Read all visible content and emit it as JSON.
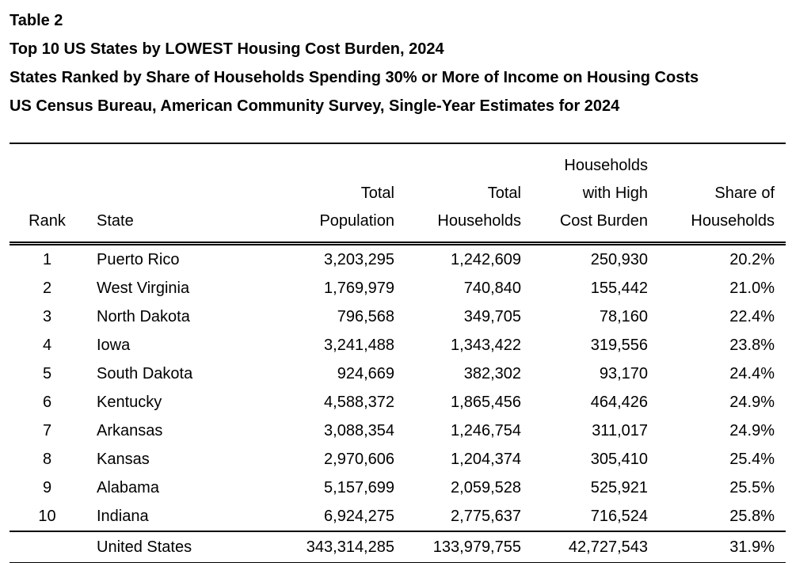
{
  "title_block": {
    "table_number": "Table 2",
    "title": "Top 10 US States by LOWEST Housing Cost Burden, 2024",
    "subtitle": "States Ranked by Share of Households Spending 30% or More of Income on Housing Costs",
    "source": "US Census Bureau, American Community Survey, Single-Year Estimates for 2024"
  },
  "table": {
    "headers": {
      "rank": "Rank",
      "state": "State",
      "population": [
        "Total",
        "Population"
      ],
      "households": [
        "Total",
        "Households"
      ],
      "burden": [
        "Households",
        "with High",
        "Cost Burden"
      ],
      "share": [
        "Share of",
        "Households"
      ]
    },
    "rows": [
      {
        "rank": "1",
        "state": "Puerto Rico",
        "population": "3,203,295",
        "households": "1,242,609",
        "burden": "250,930",
        "share": "20.2%"
      },
      {
        "rank": "2",
        "state": "West Virginia",
        "population": "1,769,979",
        "households": "740,840",
        "burden": "155,442",
        "share": "21.0%"
      },
      {
        "rank": "3",
        "state": "North Dakota",
        "population": "796,568",
        "households": "349,705",
        "burden": "78,160",
        "share": "22.4%"
      },
      {
        "rank": "4",
        "state": "Iowa",
        "population": "3,241,488",
        "households": "1,343,422",
        "burden": "319,556",
        "share": "23.8%"
      },
      {
        "rank": "5",
        "state": "South Dakota",
        "population": "924,669",
        "households": "382,302",
        "burden": "93,170",
        "share": "24.4%"
      },
      {
        "rank": "6",
        "state": "Kentucky",
        "population": "4,588,372",
        "households": "1,865,456",
        "burden": "464,426",
        "share": "24.9%"
      },
      {
        "rank": "7",
        "state": "Arkansas",
        "population": "3,088,354",
        "households": "1,246,754",
        "burden": "311,017",
        "share": "24.9%"
      },
      {
        "rank": "8",
        "state": "Kansas",
        "population": "2,970,606",
        "households": "1,204,374",
        "burden": "305,410",
        "share": "25.4%"
      },
      {
        "rank": "9",
        "state": "Alabama",
        "population": "5,157,699",
        "households": "2,059,528",
        "burden": "525,921",
        "share": "25.5%"
      },
      {
        "rank": "10",
        "state": "Indiana",
        "population": "6,924,275",
        "households": "2,775,637",
        "burden": "716,524",
        "share": "25.8%"
      }
    ],
    "total_row": {
      "rank": "",
      "state": "United States",
      "population": "343,314,285",
      "households": "133,979,755",
      "burden": "42,727,543",
      "share": "31.9%"
    }
  },
  "colors": {
    "text": "#000000",
    "background": "#ffffff",
    "rule": "#000000"
  }
}
